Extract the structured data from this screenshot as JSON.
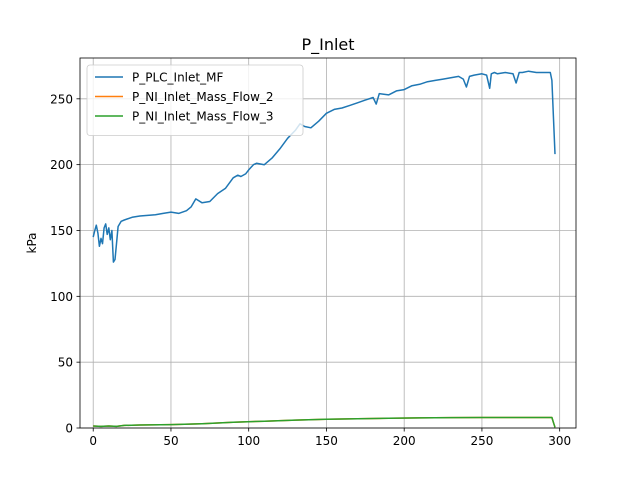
{
  "chart_data": {
    "type": "line",
    "title": "P_Inlet",
    "xlabel": "",
    "ylabel": "kPa",
    "xlim": [
      -8.5,
      310.5
    ],
    "ylim": [
      0,
      281
    ],
    "xticks": [
      0,
      50,
      100,
      150,
      200,
      250,
      300
    ],
    "yticks": [
      0,
      50,
      100,
      150,
      200,
      250
    ],
    "grid": true,
    "legend_position": "upper-left",
    "series": [
      {
        "name": "P_PLC_Inlet_MF",
        "color": "#1f77b4",
        "x": [
          0,
          1,
          2,
          3,
          4,
          5,
          6,
          7,
          8,
          9,
          10,
          11,
          12,
          13,
          14,
          15,
          16,
          18,
          20,
          25,
          30,
          40,
          45,
          50,
          55,
          60,
          63,
          66,
          70,
          75,
          80,
          85,
          90,
          93,
          95,
          98,
          100,
          103,
          105,
          110,
          115,
          120,
          125,
          130,
          133,
          136,
          140,
          145,
          150,
          155,
          160,
          165,
          170,
          175,
          180,
          182,
          184,
          190,
          195,
          200,
          205,
          210,
          215,
          220,
          225,
          230,
          235,
          238,
          240,
          242,
          245,
          250,
          253,
          255,
          256,
          258,
          260,
          265,
          270,
          272,
          274,
          276,
          280,
          285,
          290,
          294,
          295,
          296,
          297
        ],
        "y": [
          145,
          150,
          154,
          148,
          138,
          144,
          140,
          152,
          155,
          147,
          152,
          143,
          150,
          126,
          128,
          140,
          153,
          157,
          158,
          160,
          161,
          162,
          163,
          164,
          163,
          165,
          168,
          174,
          171,
          172,
          178,
          182,
          190,
          192,
          191,
          193,
          196,
          200,
          201,
          200,
          205,
          212,
          220,
          226,
          231,
          229,
          228,
          233,
          239,
          242,
          243,
          245,
          247,
          249,
          251,
          246,
          254,
          253,
          256,
          257,
          260,
          261,
          263,
          264,
          265,
          266,
          267,
          265,
          259,
          267,
          268,
          269,
          268,
          258,
          269,
          270,
          269,
          270,
          269,
          262,
          270,
          270,
          271,
          270,
          270,
          270,
          264,
          235,
          208
        ]
      },
      {
        "name": "P_NI_Inlet_Mass_Flow_2",
        "color": "#ff7f0e",
        "x": [
          0,
          5,
          10,
          15,
          20,
          30,
          50,
          70,
          90,
          110,
          130,
          150,
          170,
          190,
          210,
          230,
          250,
          270,
          290,
          295,
          296,
          297
        ],
        "y": [
          1.5,
          1.2,
          1.5,
          1.2,
          2.0,
          2.3,
          2.6,
          3.3,
          4.4,
          5.2,
          6.0,
          6.7,
          7.1,
          7.4,
          7.7,
          7.9,
          8.0,
          8.0,
          8.0,
          8.0,
          4.0,
          0.5
        ]
      },
      {
        "name": "P_NI_Inlet_Mass_Flow_3",
        "color": "#2ca02c",
        "x": [
          0,
          5,
          10,
          15,
          20,
          30,
          50,
          70,
          90,
          110,
          130,
          150,
          170,
          190,
          210,
          230,
          250,
          270,
          290,
          295,
          296,
          297
        ],
        "y": [
          1.5,
          1.2,
          1.5,
          1.2,
          2.0,
          2.3,
          2.6,
          3.3,
          4.4,
          5.2,
          6.0,
          6.7,
          7.1,
          7.4,
          7.7,
          7.9,
          8.0,
          8.0,
          8.0,
          8.0,
          4.0,
          0.5
        ]
      }
    ]
  }
}
